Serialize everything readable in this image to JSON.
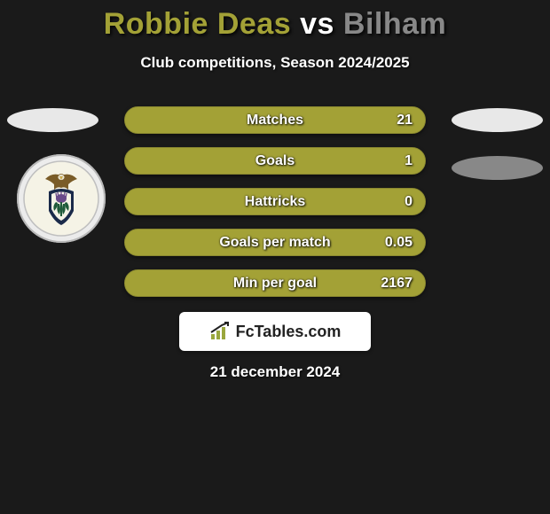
{
  "title": {
    "player1": "Robbie Deas",
    "vs": "vs",
    "player2": "Bilham",
    "player1_color": "#a3a136",
    "vs_color": "#ffffff",
    "player2_color": "#888888"
  },
  "subtitle": "Club competitions, Season 2024/2025",
  "background_color": "#1a1a1a",
  "stats": {
    "bar_bg_color": "#a3a136",
    "bar_border_color": "#8a8830",
    "fill_color": "#a3a136",
    "rows": [
      {
        "label": "Matches",
        "value": "21",
        "fill_pct": 100
      },
      {
        "label": "Goals",
        "value": "1",
        "fill_pct": 100
      },
      {
        "label": "Hattricks",
        "value": "0",
        "fill_pct": 100
      },
      {
        "label": "Goals per match",
        "value": "0.05",
        "fill_pct": 100
      },
      {
        "label": "Min per goal",
        "value": "2167",
        "fill_pct": 100
      }
    ]
  },
  "side_placeholders": {
    "left_ellipse_color": "#e8e8e8",
    "right_ellipse_top_color": "#e8e8e8",
    "right_ellipse_bottom_color": "#888888"
  },
  "badge": {
    "bird_color": "#7a5c28",
    "thistle_green": "#1f5a3a",
    "thistle_purple": "#6a4a8a",
    "ring_color": "#1a2a4a"
  },
  "branding": {
    "text": "FcTables.com",
    "icon_color": "#9aa73d",
    "text_color": "#222222",
    "bg_color": "#ffffff"
  },
  "date": "21 december 2024"
}
